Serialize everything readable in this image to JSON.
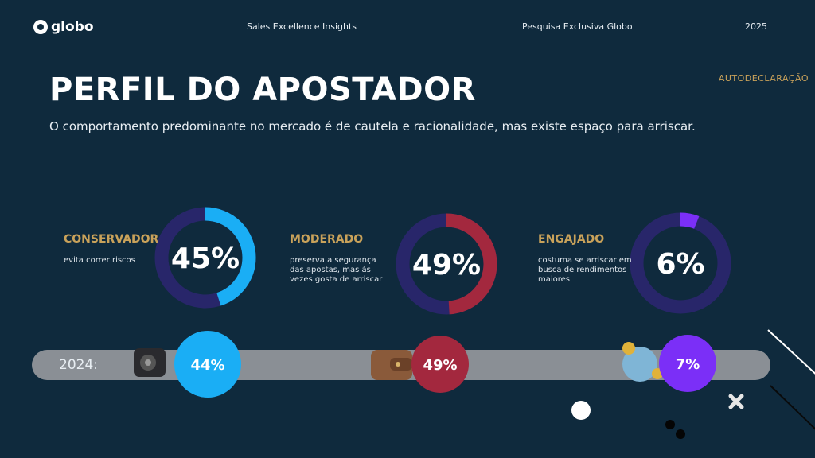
{
  "header": {
    "logo": "globo",
    "left": "Sales Excellence Insights",
    "center": "Pesquisa Exclusiva Globo",
    "year": "2025"
  },
  "tag": "AUTODECLARAÇÃO",
  "title": "PERFIL DO APOSTADOR",
  "subtitle": "O comportamento predominante no mercado é de cautela e racionalidade, mas existe espaço para arriscar.",
  "comparison_label": "2024:",
  "profiles": [
    {
      "label": "CONSERVADOR",
      "description": "evita correr riscos",
      "value": 45,
      "value_label": "45%",
      "previous": 44,
      "previous_label": "44%",
      "color": "#1aaef5"
    },
    {
      "label": "MODERADO",
      "description": "preserva a segurança das apostas, mas às vezes gosta de arriscar",
      "value": 49,
      "value_label": "49%",
      "previous": 49,
      "previous_label": "49%",
      "color": "#a3283e"
    },
    {
      "label": "ENGAJADO",
      "description": "costuma se arriscar em busca de rendimentos maiores",
      "value": 6,
      "value_label": "6%",
      "previous": 7,
      "previous_label": "7%",
      "color": "#7b2ff7"
    }
  ]
}
